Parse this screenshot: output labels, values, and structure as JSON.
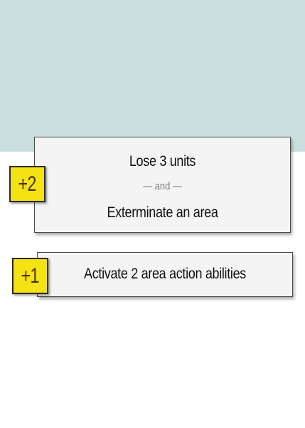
{
  "rewards": [
    {
      "bonus": "+2",
      "line1": "Lose 3 units",
      "connector": "— and —",
      "line2": "Exterminate an area"
    },
    {
      "bonus": "+1",
      "line1": "Activate 2 area action abilities"
    }
  ],
  "colors": {
    "top_band": "#cbdfdf",
    "card_background": "#f4f4f4",
    "badge_yellow": "#f5e213",
    "badge_text": "#4a3308"
  }
}
